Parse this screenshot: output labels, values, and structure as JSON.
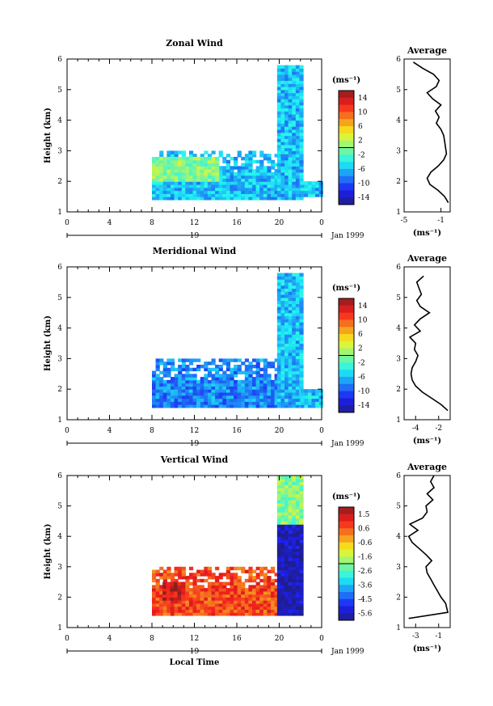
{
  "chart_data": [
    {
      "type": "heatmap",
      "title": "Zonal Wind",
      "xlabel": "",
      "ylabel": "Height (km)",
      "xlim": [
        0,
        24
      ],
      "ylim": [
        1,
        6
      ],
      "x_ticks": [
        "0",
        "4",
        "8",
        "12",
        "16",
        "20",
        "0"
      ],
      "y_ticks": [
        "1",
        "2",
        "3",
        "4",
        "5",
        "6"
      ],
      "day_axis": {
        "label": "19",
        "date": "Jan 1999"
      },
      "colorbar": {
        "unit": "(ms⁻¹)",
        "min": -16,
        "max": 16,
        "ticks": [
          "14",
          "10",
          "6",
          "2",
          "-2",
          "-6",
          "-10",
          "-14"
        ]
      },
      "data_coverage": [
        {
          "x": [
            8,
            21
          ],
          "y": [
            1.4,
            3.0
          ],
          "value": -6
        },
        {
          "x": [
            8,
            14
          ],
          "y": [
            2.0,
            2.8
          ],
          "value": 0
        },
        {
          "x": [
            19.8,
            22
          ],
          "y": [
            1.4,
            5.8
          ],
          "value": -6
        },
        {
          "x": [
            22,
            24
          ],
          "y": [
            1.5,
            2.0
          ],
          "value": -6
        }
      ],
      "average_profile": {
        "title": "Average",
        "xlabel": "(ms⁻¹)",
        "x_ticks": [
          "-5",
          "-1"
        ],
        "xlim": [
          -5,
          0
        ],
        "height": [
          1.3,
          1.5,
          1.7,
          1.9,
          2.1,
          2.3,
          2.5,
          2.7,
          2.9,
          3.1,
          3.3,
          3.5,
          3.7,
          3.9,
          4.1,
          4.3,
          4.5,
          4.7,
          4.9,
          5.1,
          5.3,
          5.5,
          5.7,
          5.9
        ],
        "value": [
          -0.2,
          -0.6,
          -1.3,
          -2.2,
          -2.5,
          -2.1,
          -1.3,
          -0.7,
          -0.4,
          -0.5,
          -0.6,
          -0.7,
          -1.0,
          -1.5,
          -1.2,
          -1.6,
          -1.0,
          -1.9,
          -2.5,
          -1.5,
          -1.2,
          -1.8,
          -3.0,
          -4.0
        ]
      }
    },
    {
      "type": "heatmap",
      "title": "Meridional Wind",
      "xlabel": "",
      "ylabel": "Height (km)",
      "xlim": [
        0,
        24
      ],
      "ylim": [
        1,
        6
      ],
      "x_ticks": [
        "0",
        "4",
        "8",
        "12",
        "16",
        "20",
        "0"
      ],
      "y_ticks": [
        "1",
        "2",
        "3",
        "4",
        "5",
        "6"
      ],
      "day_axis": {
        "label": "19",
        "date": "Jan 1999"
      },
      "colorbar": {
        "unit": "(ms⁻¹)",
        "min": -16,
        "max": 16,
        "ticks": [
          "14",
          "10",
          "6",
          "2",
          "-2",
          "-6",
          "-10",
          "-14"
        ]
      },
      "data_coverage": [
        {
          "x": [
            8,
            21
          ],
          "y": [
            1.4,
            3.0
          ],
          "value": -8
        },
        {
          "x": [
            19.8,
            22
          ],
          "y": [
            1.4,
            5.8
          ],
          "value": -6
        },
        {
          "x": [
            22,
            24
          ],
          "y": [
            1.4,
            2.0
          ],
          "value": -6
        }
      ],
      "average_profile": {
        "title": "Average",
        "xlabel": "(ms⁻¹)",
        "x_ticks": [
          "-4",
          "-2"
        ],
        "xlim": [
          -5,
          -1
        ],
        "height": [
          1.3,
          1.5,
          1.7,
          1.9,
          2.1,
          2.3,
          2.5,
          2.7,
          2.9,
          3.1,
          3.3,
          3.5,
          3.7,
          3.9,
          4.1,
          4.3,
          4.5,
          4.7,
          4.9,
          5.1,
          5.3,
          5.5,
          5.7
        ],
        "value": [
          -1.2,
          -1.8,
          -2.6,
          -3.4,
          -4.0,
          -4.3,
          -4.4,
          -4.3,
          -4.0,
          -3.8,
          -4.1,
          -4.0,
          -4.5,
          -3.6,
          -4.1,
          -3.6,
          -2.8,
          -3.6,
          -3.9,
          -3.5,
          -3.7,
          -3.9,
          -3.3
        ]
      }
    },
    {
      "type": "heatmap",
      "title": "Vertical Wind",
      "xlabel": "Local Time",
      "ylabel": "Height (km)",
      "xlim": [
        0,
        24
      ],
      "ylim": [
        1,
        6
      ],
      "x_ticks": [
        "0",
        "4",
        "8",
        "12",
        "16",
        "20",
        "0"
      ],
      "y_ticks": [
        "1",
        "2",
        "3",
        "4",
        "5",
        "6"
      ],
      "day_axis": {
        "label": "19",
        "date": "Jan 1999"
      },
      "colorbar": {
        "unit": "(ms⁻¹)",
        "min": -6,
        "max": 2,
        "ticks": [
          "1.5",
          "0.6",
          "-0.6",
          "-1.6",
          "-2.6",
          "-3.6",
          "-4.5",
          "-5.6"
        ]
      },
      "data_coverage": [
        {
          "x": [
            8,
            19.8
          ],
          "y": [
            1.4,
            3.0
          ],
          "value": 0.6
        },
        {
          "x": [
            9,
            11
          ],
          "y": [
            1.9,
            2.5
          ],
          "value": 1.5
        },
        {
          "x": [
            19.8,
            22
          ],
          "y": [
            1.4,
            4.4
          ],
          "value": -5.6
        },
        {
          "x": [
            19.8,
            22
          ],
          "y": [
            4.4,
            6.0
          ],
          "value": -2.0
        }
      ],
      "average_profile": {
        "title": "Average",
        "xlabel": "(ms⁻¹)",
        "x_ticks": [
          "-3",
          "-1"
        ],
        "xlim": [
          -4,
          0
        ],
        "height": [
          1.3,
          1.5,
          1.8,
          2.0,
          2.2,
          2.4,
          2.6,
          2.8,
          3.0,
          3.2,
          3.4,
          3.6,
          3.8,
          4.0,
          4.2,
          4.4,
          4.6,
          4.8,
          5.0,
          5.2,
          5.4,
          5.6,
          5.8,
          6.0
        ],
        "value": [
          -3.6,
          -0.2,
          -0.4,
          -0.8,
          -1.1,
          -1.4,
          -1.7,
          -2.0,
          -2.1,
          -1.6,
          -2.1,
          -2.7,
          -3.3,
          -3.6,
          -2.8,
          -3.5,
          -2.4,
          -2.0,
          -2.1,
          -1.5,
          -2.0,
          -1.4,
          -1.7,
          -1.4
        ]
      }
    }
  ],
  "shared": {
    "xlabel": "Local Time"
  }
}
